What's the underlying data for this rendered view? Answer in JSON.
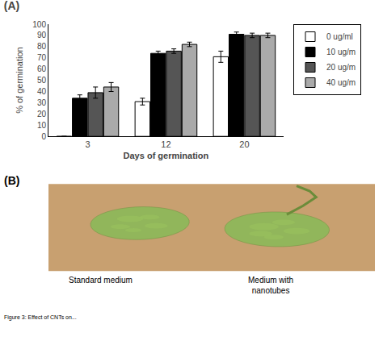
{
  "chart_data": {
    "type": "bar",
    "title": "(A)",
    "xlabel": "Days of germination",
    "ylabel": "% of germination",
    "categories": [
      "3",
      "12",
      "20"
    ],
    "series": [
      {
        "name": "0 ug/ml",
        "color": "white",
        "values": [
          0,
          31,
          71
        ],
        "errors": [
          0,
          3,
          5
        ]
      },
      {
        "name": "10 ug/m",
        "color": "black",
        "values": [
          34,
          74,
          91
        ],
        "errors": [
          3,
          2,
          2
        ]
      },
      {
        "name": "20 ug/m",
        "color": "#555555",
        "values": [
          39,
          76,
          90
        ],
        "errors": [
          5,
          2,
          2
        ]
      },
      {
        "name": "40 ug/m",
        "color": "#aaaaaa",
        "values": [
          44,
          82,
          90
        ],
        "errors": [
          4,
          2,
          2
        ]
      }
    ],
    "ylim": [
      0,
      100
    ],
    "yticks": [
      0,
      10,
      20,
      30,
      40,
      50,
      60,
      70,
      80,
      90,
      100
    ],
    "grid": false,
    "legend": "right",
    "annotations": [
      "(B)",
      "Standard medium",
      "Medium with\nnanotubes",
      "Figure 3: Effect of CNTs on..."
    ]
  }
}
